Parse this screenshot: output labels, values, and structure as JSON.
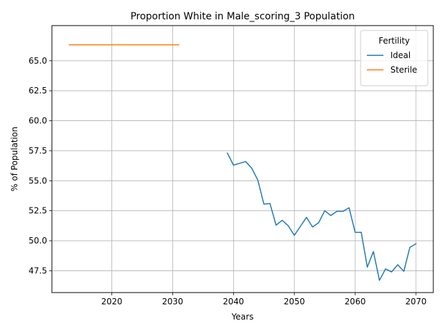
{
  "chart_data": {
    "type": "line",
    "title": "Proportion White in Male_scoring_3 Population",
    "xlabel": "Years",
    "ylabel": "% of Population",
    "xlim": [
      2010.15,
      2072.85
    ],
    "ylim": [
      45.68,
      67.93
    ],
    "xticks": [
      2020,
      2030,
      2040,
      2050,
      2060,
      2070
    ],
    "yticks": [
      47.5,
      50.0,
      52.5,
      55.0,
      57.5,
      60.0,
      62.5,
      65.0
    ],
    "grid": true,
    "legend": {
      "title": "Fertility",
      "position": "top-right"
    },
    "series": [
      {
        "name": "Ideal",
        "color": "#1f77b4",
        "x": [
          2039,
          2040,
          2041,
          2042,
          2043,
          2044,
          2045,
          2046,
          2047,
          2048,
          2049,
          2050,
          2051,
          2052,
          2053,
          2054,
          2055,
          2056,
          2057,
          2058,
          2059,
          2060,
          2061,
          2062,
          2063,
          2064,
          2065,
          2066,
          2067,
          2068,
          2069,
          2070
        ],
        "y": [
          57.3,
          56.3,
          56.45,
          56.6,
          56.05,
          55.05,
          53.05,
          53.1,
          51.3,
          51.7,
          51.25,
          50.45,
          51.2,
          51.95,
          51.15,
          51.5,
          52.5,
          52.1,
          52.45,
          52.45,
          52.75,
          50.7,
          50.7,
          47.8,
          49.1,
          46.7,
          47.65,
          47.4,
          48.0,
          47.45,
          49.45,
          49.75
        ]
      },
      {
        "name": "Sterile",
        "color": "#ff7f0e",
        "x": [
          2013,
          2031
        ],
        "y": [
          66.33,
          66.33
        ]
      }
    ]
  }
}
